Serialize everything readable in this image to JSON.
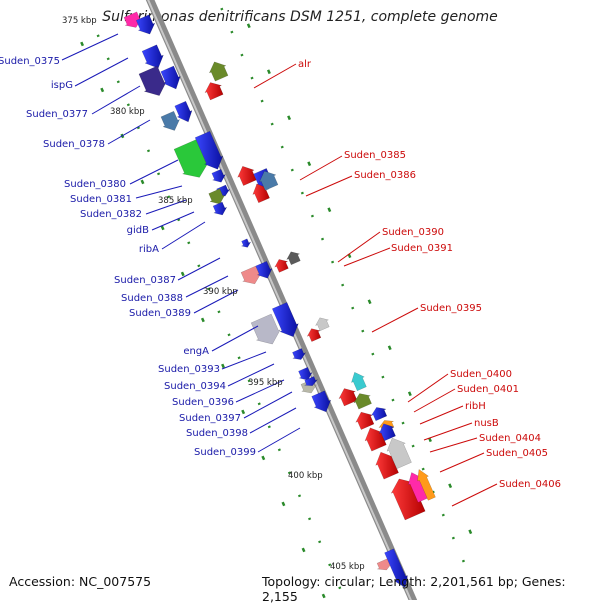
{
  "title": "Sulfurimonas denitrificans DSM 1251, complete genome",
  "accession": "Accession: NC_007575",
  "topology": "Topology: circular; Length: 2,201,561 bp; Genes: 2,155",
  "colors": {
    "forward": "#0a14b8",
    "reverse": "#cc0a0a",
    "backbone": "#909090",
    "ticks": "#2a8a2a"
  },
  "kbp_marks": [
    "375 kbp",
    "380 kbp",
    "385 kbp",
    "390 kbp",
    "395 kbp",
    "400 kbp",
    "405 kbp"
  ],
  "labels_left": [
    "Suden_0375",
    "ispG",
    "Suden_0377",
    "Suden_0378",
    "Suden_0380",
    "Suden_0381",
    "Suden_0382",
    "gidB",
    "ribA",
    "Suden_0387",
    "Suden_0388",
    "Suden_0389",
    "engA",
    "Suden_0393",
    "Suden_0394",
    "Suden_0396",
    "Suden_0397",
    "Suden_0398",
    "Suden_0399"
  ],
  "labels_right": [
    "alr",
    "Suden_0385",
    "Suden_0386",
    "Suden_0390",
    "Suden_0391",
    "Suden_0395",
    "Suden_0400",
    "Suden_0401",
    "ribH",
    "nusB",
    "Suden_0404",
    "Suden_0405",
    "Suden_0406"
  ]
}
